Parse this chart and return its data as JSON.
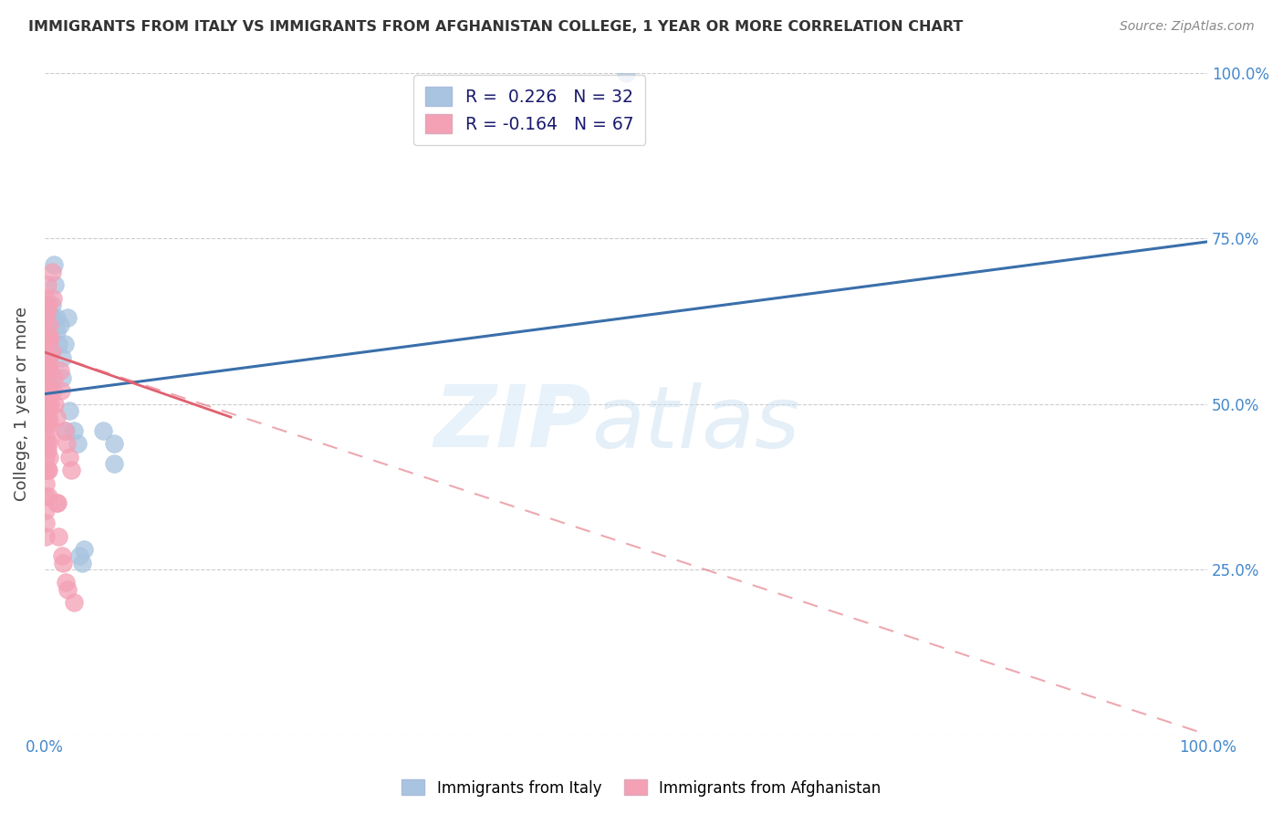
{
  "title": "IMMIGRANTS FROM ITALY VS IMMIGRANTS FROM AFGHANISTAN COLLEGE, 1 YEAR OR MORE CORRELATION CHART",
  "source": "Source: ZipAtlas.com",
  "ylabel": "College, 1 year or more",
  "xlim": [
    0,
    1.0
  ],
  "ylim": [
    0,
    1.0
  ],
  "x_ticks": [
    0.0,
    0.2,
    0.4,
    0.6,
    0.8,
    1.0
  ],
  "y_ticks": [
    0.0,
    0.25,
    0.5,
    0.75,
    1.0
  ],
  "legend_italy_R": "0.226",
  "legend_italy_N": "32",
  "legend_afg_R": "-0.164",
  "legend_afg_N": "67",
  "italy_color": "#a8c4e0",
  "afg_color": "#f4a0b5",
  "italy_line_color": "#3a6faa",
  "afg_line_color": "#e06070",
  "italy_points": [
    [
      0.001,
      0.57
    ],
    [
      0.002,
      0.62
    ],
    [
      0.002,
      0.55
    ],
    [
      0.003,
      0.64
    ],
    [
      0.003,
      0.6
    ],
    [
      0.004,
      0.59
    ],
    [
      0.004,
      0.53
    ],
    [
      0.005,
      0.63
    ],
    [
      0.005,
      0.58
    ],
    [
      0.006,
      0.65
    ],
    [
      0.007,
      0.63
    ],
    [
      0.008,
      0.71
    ],
    [
      0.009,
      0.68
    ],
    [
      0.01,
      0.63
    ],
    [
      0.01,
      0.61
    ],
    [
      0.012,
      0.59
    ],
    [
      0.013,
      0.62
    ],
    [
      0.015,
      0.57
    ],
    [
      0.015,
      0.54
    ],
    [
      0.017,
      0.59
    ],
    [
      0.018,
      0.46
    ],
    [
      0.02,
      0.63
    ],
    [
      0.021,
      0.49
    ],
    [
      0.025,
      0.46
    ],
    [
      0.028,
      0.44
    ],
    [
      0.03,
      0.27
    ],
    [
      0.032,
      0.26
    ],
    [
      0.034,
      0.28
    ],
    [
      0.05,
      0.46
    ],
    [
      0.06,
      0.44
    ],
    [
      0.06,
      0.41
    ],
    [
      0.5,
      1.0
    ]
  ],
  "afg_points": [
    [
      0.001,
      0.66
    ],
    [
      0.001,
      0.63
    ],
    [
      0.001,
      0.61
    ],
    [
      0.001,
      0.59
    ],
    [
      0.001,
      0.57
    ],
    [
      0.001,
      0.55
    ],
    [
      0.001,
      0.53
    ],
    [
      0.001,
      0.51
    ],
    [
      0.001,
      0.5
    ],
    [
      0.001,
      0.49
    ],
    [
      0.001,
      0.47
    ],
    [
      0.001,
      0.45
    ],
    [
      0.001,
      0.44
    ],
    [
      0.001,
      0.42
    ],
    [
      0.001,
      0.4
    ],
    [
      0.001,
      0.38
    ],
    [
      0.001,
      0.36
    ],
    [
      0.001,
      0.34
    ],
    [
      0.001,
      0.32
    ],
    [
      0.001,
      0.3
    ],
    [
      0.002,
      0.68
    ],
    [
      0.002,
      0.64
    ],
    [
      0.002,
      0.6
    ],
    [
      0.002,
      0.56
    ],
    [
      0.002,
      0.53
    ],
    [
      0.002,
      0.5
    ],
    [
      0.002,
      0.47
    ],
    [
      0.002,
      0.43
    ],
    [
      0.002,
      0.4
    ],
    [
      0.003,
      0.65
    ],
    [
      0.003,
      0.6
    ],
    [
      0.003,
      0.56
    ],
    [
      0.003,
      0.52
    ],
    [
      0.003,
      0.48
    ],
    [
      0.003,
      0.44
    ],
    [
      0.003,
      0.4
    ],
    [
      0.003,
      0.36
    ],
    [
      0.004,
      0.62
    ],
    [
      0.004,
      0.57
    ],
    [
      0.004,
      0.52
    ],
    [
      0.004,
      0.47
    ],
    [
      0.004,
      0.42
    ],
    [
      0.005,
      0.6
    ],
    [
      0.005,
      0.55
    ],
    [
      0.005,
      0.5
    ],
    [
      0.005,
      0.45
    ],
    [
      0.006,
      0.7
    ],
    [
      0.006,
      0.58
    ],
    [
      0.007,
      0.66
    ],
    [
      0.007,
      0.52
    ],
    [
      0.008,
      0.54
    ],
    [
      0.009,
      0.5
    ],
    [
      0.01,
      0.48
    ],
    [
      0.01,
      0.35
    ],
    [
      0.011,
      0.35
    ],
    [
      0.012,
      0.3
    ],
    [
      0.013,
      0.55
    ],
    [
      0.014,
      0.52
    ],
    [
      0.015,
      0.27
    ],
    [
      0.016,
      0.26
    ],
    [
      0.017,
      0.46
    ],
    [
      0.018,
      0.23
    ],
    [
      0.019,
      0.44
    ],
    [
      0.02,
      0.22
    ],
    [
      0.021,
      0.42
    ],
    [
      0.023,
      0.4
    ],
    [
      0.025,
      0.2
    ]
  ],
  "italy_trend_x": [
    0.0,
    1.0
  ],
  "italy_trend_y": [
    0.515,
    0.745
  ],
  "afg_trend_x": [
    0.0,
    1.0
  ],
  "afg_trend_y": [
    0.578,
    0.0
  ]
}
